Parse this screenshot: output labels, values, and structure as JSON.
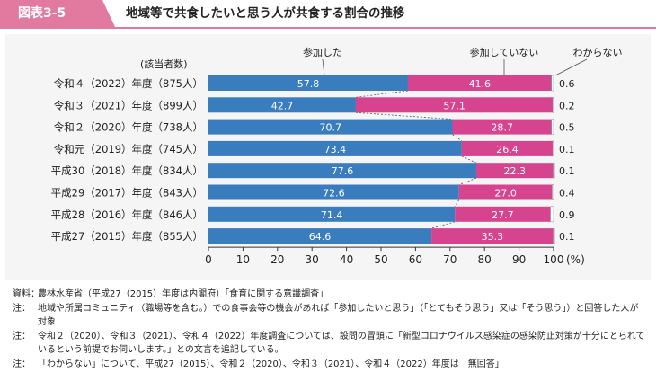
{
  "header": {
    "badge": "図表3-5",
    "title": "地域等で共食したいと思う人が共食する割合の推移"
  },
  "chart_data": {
    "type": "bar",
    "stacked": true,
    "orientation": "horizontal",
    "title": "地域等で共食したいと思う人が共食する割合の推移",
    "row_header": "(該当者数)",
    "categories": [
      "令和４（2022）年度（875人）",
      "令和３（2021）年度（899人）",
      "令和２（2020）年度（738人）",
      "令和元（2019）年度（745人）",
      "平成30（2018）年度（834人）",
      "平成29（2017）年度（843人）",
      "平成28（2016）年度（846人）",
      "平成27（2015）年度（855人）"
    ],
    "series": [
      {
        "name": "参加した",
        "color": "#3a7dbf",
        "values": [
          57.8,
          42.7,
          70.7,
          73.4,
          77.6,
          72.6,
          71.4,
          64.6
        ]
      },
      {
        "name": "参加していない",
        "color": "#d6448f",
        "values": [
          41.6,
          57.1,
          28.7,
          26.4,
          22.3,
          27.0,
          27.7,
          35.3
        ]
      },
      {
        "name": "わからない",
        "color": "#ffffff",
        "values": [
          0.6,
          0.2,
          0.5,
          0.1,
          0.1,
          0.4,
          0.9,
          0.1
        ]
      }
    ],
    "value_labels": {
      "participated": [
        "57.8",
        "42.7",
        "70.7",
        "73.4",
        "77.6",
        "72.6",
        "71.4",
        "64.6"
      ],
      "not_participated": [
        "41.6",
        "57.1",
        "28.7",
        "26.4",
        "22.3",
        "27.0",
        "27.7",
        "35.3"
      ],
      "unknown": [
        "0.6",
        "0.2",
        "0.5",
        "0.1",
        "0.1",
        "0.4",
        "0.9",
        "0.1"
      ]
    },
    "x_ticks": [
      "0",
      "10",
      "20",
      "30",
      "40",
      "50",
      "60",
      "70",
      "80",
      "90",
      "100"
    ],
    "x_unit": "(%)",
    "xlim": [
      0,
      100
    ]
  },
  "notes": [
    {
      "label": "資料：",
      "text": "農林水産省（平成27（2015）年度は内閣府）「食育に関する意識調査」"
    },
    {
      "label": "注：",
      "text": "地域や所属コミュニティ（職場等を含む。）での食事会等の機会があれば「参加したいと思う」（「とてもそう思う」又は「そう思う」）と回答した人が対象"
    },
    {
      "label": "注：",
      "text": "令和２（2020）、令和３（2021）、令和４（2022）年度調査については、設問の冒頭に「新型コロナウイルス感染症の感染防止対策が十分にとられているという前提でお伺いします。」との文言を追記している。"
    },
    {
      "label": "注：",
      "text": "「わからない」について、平成27（2015）、令和２（2020）、令和３（2021）、令和４（2022）年度は「無回答」"
    }
  ]
}
